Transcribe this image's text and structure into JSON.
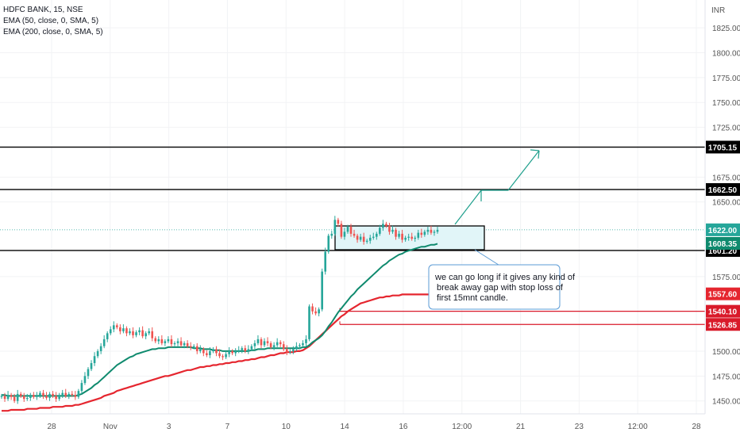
{
  "header": {
    "symbol": "HDFC BANK, 15, NSE",
    "ema50": "EMA (50, close, 0, SMA, 5)",
    "ema200": "EMA (200, close, 0, SMA, 5)",
    "currency": "INR"
  },
  "note": {
    "lines": [
      "we can go long if it gives any kind of",
      "break away gap with stop loss of",
      "first 15mnt candle."
    ]
  },
  "colors": {
    "up": "#26a69a",
    "down": "#ef5350",
    "ema50": "#0f8a6e",
    "ema200": "#e5262f",
    "box_fill": "#e1f5f8",
    "box_border": "#000000",
    "arrow": "#1e9f8c",
    "note_border": "#5b9bd5",
    "red_level": "#d91a2a"
  },
  "chart_data": {
    "type": "candlestick",
    "y_axis": {
      "ticks": [
        "1825.00",
        "1800.00",
        "1775.00",
        "1750.00",
        "1725.00",
        "1675.00",
        "1650.00",
        "1575.00",
        "1500.00",
        "1475.00",
        "1450.00"
      ],
      "ylim": [
        1437,
        1853
      ]
    },
    "x_axis": {
      "ticks": [
        "28",
        "Nov",
        "3",
        "7",
        "10",
        "14",
        "16",
        "12:00",
        "21",
        "23",
        "12:00",
        "28"
      ]
    },
    "levels": [
      {
        "price": 1705.15,
        "label": "1705.15",
        "style": "black",
        "from": 0.0
      },
      {
        "price": 1662.5,
        "label": "1662.50",
        "style": "black",
        "from": 0.0
      },
      {
        "price": 1601.2,
        "label": "1601.20",
        "style": "black",
        "from": 0.0
      },
      {
        "price": 1540.1,
        "label": "1540.10",
        "style": "red",
        "from": 0.46
      },
      {
        "price": 1526.85,
        "label": "1526.85",
        "style": "red",
        "from": 0.46
      }
    ],
    "price_badges": [
      {
        "price": 1622.0,
        "label": "1622.00",
        "color": "#26a69a"
      },
      {
        "price": 1608.35,
        "label": "1608.35",
        "color": "#0f8a6e"
      },
      {
        "price": 1557.6,
        "label": "1557.60",
        "color": "#e5262f"
      }
    ],
    "close": [
      1455,
      1452,
      1456,
      1454,
      1450,
      1457,
      1455,
      1452,
      1453,
      1456,
      1454,
      1455,
      1458,
      1455,
      1453,
      1457,
      1455,
      1452,
      1456,
      1458,
      1455,
      1457,
      1456,
      1454,
      1460,
      1468,
      1475,
      1482,
      1488,
      1495,
      1500,
      1505,
      1512,
      1518,
      1522,
      1526,
      1524,
      1520,
      1523,
      1518,
      1520,
      1516,
      1519,
      1521,
      1515,
      1518,
      1520,
      1513,
      1510,
      1512,
      1508,
      1510,
      1512,
      1507,
      1508,
      1510,
      1506,
      1508,
      1505,
      1504,
      1505,
      1500,
      1502,
      1498,
      1496,
      1500,
      1502,
      1498,
      1495,
      1494,
      1497,
      1500,
      1498,
      1500,
      1501,
      1503,
      1500,
      1502,
      1505,
      1508,
      1512,
      1506,
      1510,
      1508,
      1504,
      1506,
      1509,
      1507,
      1502,
      1499,
      1500,
      1502,
      1505,
      1506,
      1508,
      1512,
      1545,
      1540,
      1538,
      1542,
      1580,
      1600,
      1616,
      1618,
      1632,
      1628,
      1615,
      1620,
      1625,
      1618,
      1616,
      1612,
      1615,
      1610,
      1611,
      1614,
      1615,
      1618,
      1624,
      1628,
      1626,
      1620,
      1622,
      1615,
      1618,
      1612,
      1614,
      1615,
      1613,
      1614,
      1619,
      1617,
      1620,
      1622,
      1619,
      1620,
      1622
    ],
    "ema50": [
      1456,
      1456,
      1455,
      1455,
      1455,
      1455,
      1455,
      1455,
      1455,
      1455,
      1455,
      1455,
      1455,
      1455,
      1455,
      1455,
      1455,
      1455,
      1455,
      1455,
      1455,
      1455,
      1455,
      1455,
      1456,
      1457,
      1459,
      1461,
      1463,
      1466,
      1468,
      1471,
      1474,
      1477,
      1480,
      1483,
      1486,
      1488,
      1490,
      1492,
      1494,
      1495,
      1497,
      1498,
      1499,
      1500,
      1501,
      1502,
      1502,
      1503,
      1503,
      1503,
      1504,
      1504,
      1504,
      1504,
      1504,
      1504,
      1504,
      1504,
      1503,
      1503,
      1503,
      1502,
      1502,
      1502,
      1501,
      1501,
      1501,
      1500,
      1500,
      1500,
      1500,
      1500,
      1500,
      1500,
      1500,
      1500,
      1501,
      1501,
      1502,
      1502,
      1502,
      1503,
      1503,
      1503,
      1503,
      1503,
      1503,
      1503,
      1503,
      1503,
      1503,
      1503,
      1504,
      1504,
      1506,
      1509,
      1511,
      1513,
      1516,
      1520,
      1525,
      1529,
      1534,
      1539,
      1543,
      1547,
      1551,
      1555,
      1558,
      1562,
      1565,
      1568,
      1571,
      1574,
      1577,
      1580,
      1583,
      1586,
      1588,
      1591,
      1593,
      1595,
      1597,
      1598,
      1600,
      1601,
      1602,
      1603,
      1604,
      1605,
      1605,
      1606,
      1607,
      1607,
      1608
    ],
    "ema200": [
      1440,
      1440,
      1440,
      1441,
      1441,
      1441,
      1441,
      1441,
      1442,
      1442,
      1442,
      1442,
      1443,
      1443,
      1443,
      1443,
      1444,
      1444,
      1444,
      1444,
      1445,
      1445,
      1445,
      1446,
      1446,
      1447,
      1448,
      1449,
      1450,
      1451,
      1452,
      1453,
      1455,
      1456,
      1457,
      1458,
      1460,
      1461,
      1462,
      1463,
      1464,
      1465,
      1466,
      1467,
      1468,
      1469,
      1470,
      1471,
      1472,
      1473,
      1474,
      1475,
      1475,
      1476,
      1477,
      1478,
      1479,
      1480,
      1481,
      1481,
      1482,
      1483,
      1484,
      1484,
      1485,
      1485,
      1486,
      1486,
      1487,
      1487,
      1488,
      1488,
      1489,
      1489,
      1490,
      1490,
      1491,
      1491,
      1492,
      1492,
      1493,
      1494,
      1494,
      1495,
      1496,
      1496,
      1497,
      1498,
      1498,
      1499,
      1499,
      1499,
      1500,
      1500,
      1501,
      1503,
      1505,
      1508,
      1511,
      1514,
      1517,
      1520,
      1523,
      1526,
      1529,
      1532,
      1535,
      1537,
      1540,
      1542,
      1544,
      1546,
      1548,
      1549,
      1550,
      1551,
      1552,
      1553,
      1554,
      1554,
      1555,
      1555,
      1556,
      1556,
      1556,
      1557,
      1557,
      1557,
      1557,
      1557,
      1557,
      1557,
      1557,
      1557,
      1557,
      1557,
      1558
    ]
  }
}
